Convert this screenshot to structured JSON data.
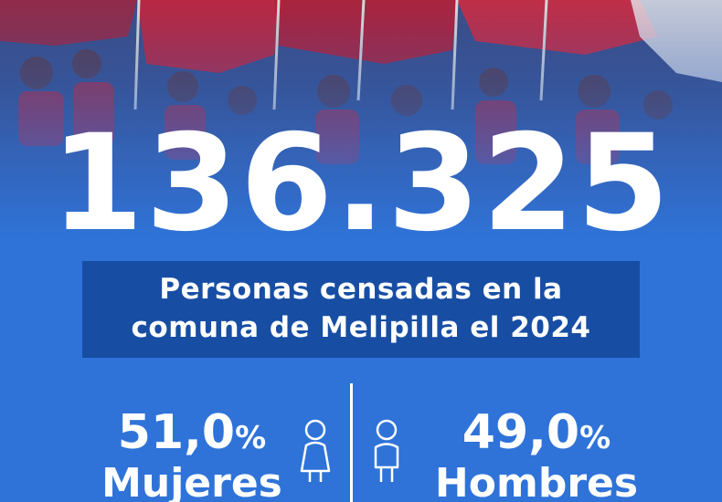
{
  "headline": {
    "number": "136.325"
  },
  "caption": {
    "line1": "Personas censadas en la",
    "line2": "comuna de Melipilla el 2024"
  },
  "women": {
    "percent": "51,0",
    "percent_symbol": "%",
    "label": "Mujeres",
    "icon": "woman-icon"
  },
  "men": {
    "percent": "49,0",
    "percent_symbol": "%",
    "label": "Hombres",
    "icon": "man-icon"
  },
  "colors": {
    "background": "#2f73d8",
    "caption_box": "#174ea4",
    "flag_red": "#c8243a",
    "text": "#ffffff"
  }
}
